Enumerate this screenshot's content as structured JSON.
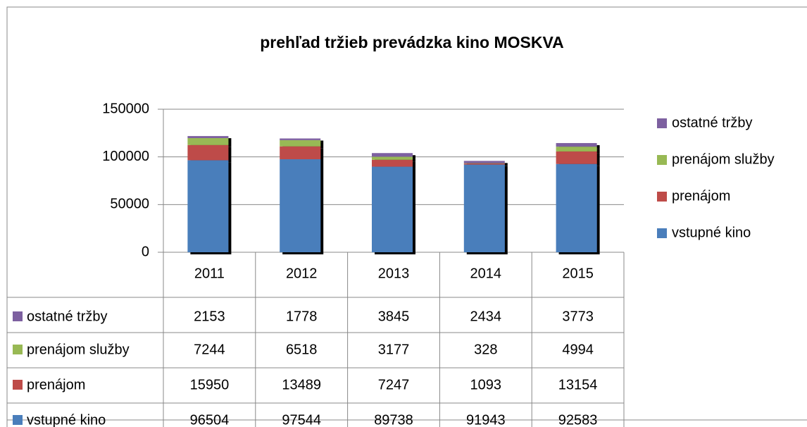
{
  "chart_data": {
    "type": "stacked_bar",
    "title": "prehľad tržieb prevádzka kino MOSKVA",
    "categories": [
      "2011",
      "2012",
      "2013",
      "2014",
      "2015"
    ],
    "series": [
      {
        "name": "vstupné kino",
        "color": "#4a7ebb",
        "values": [
          96504,
          97544,
          89738,
          91943,
          92583
        ]
      },
      {
        "name": "prenájom",
        "color": "#be4b48",
        "values": [
          15950,
          13489,
          7247,
          1093,
          13154
        ]
      },
      {
        "name": "prenájom služby",
        "color": "#98b954",
        "values": [
          7244,
          6518,
          3177,
          328,
          4994
        ]
      },
      {
        "name": "ostatné tržby",
        "color": "#7d60a0",
        "values": [
          2153,
          1778,
          3845,
          2434,
          3773
        ]
      }
    ],
    "ylim": [
      0,
      150000
    ],
    "yticks": [
      0,
      50000,
      100000,
      150000
    ],
    "grid": true,
    "legend": "right",
    "data_table": true
  }
}
